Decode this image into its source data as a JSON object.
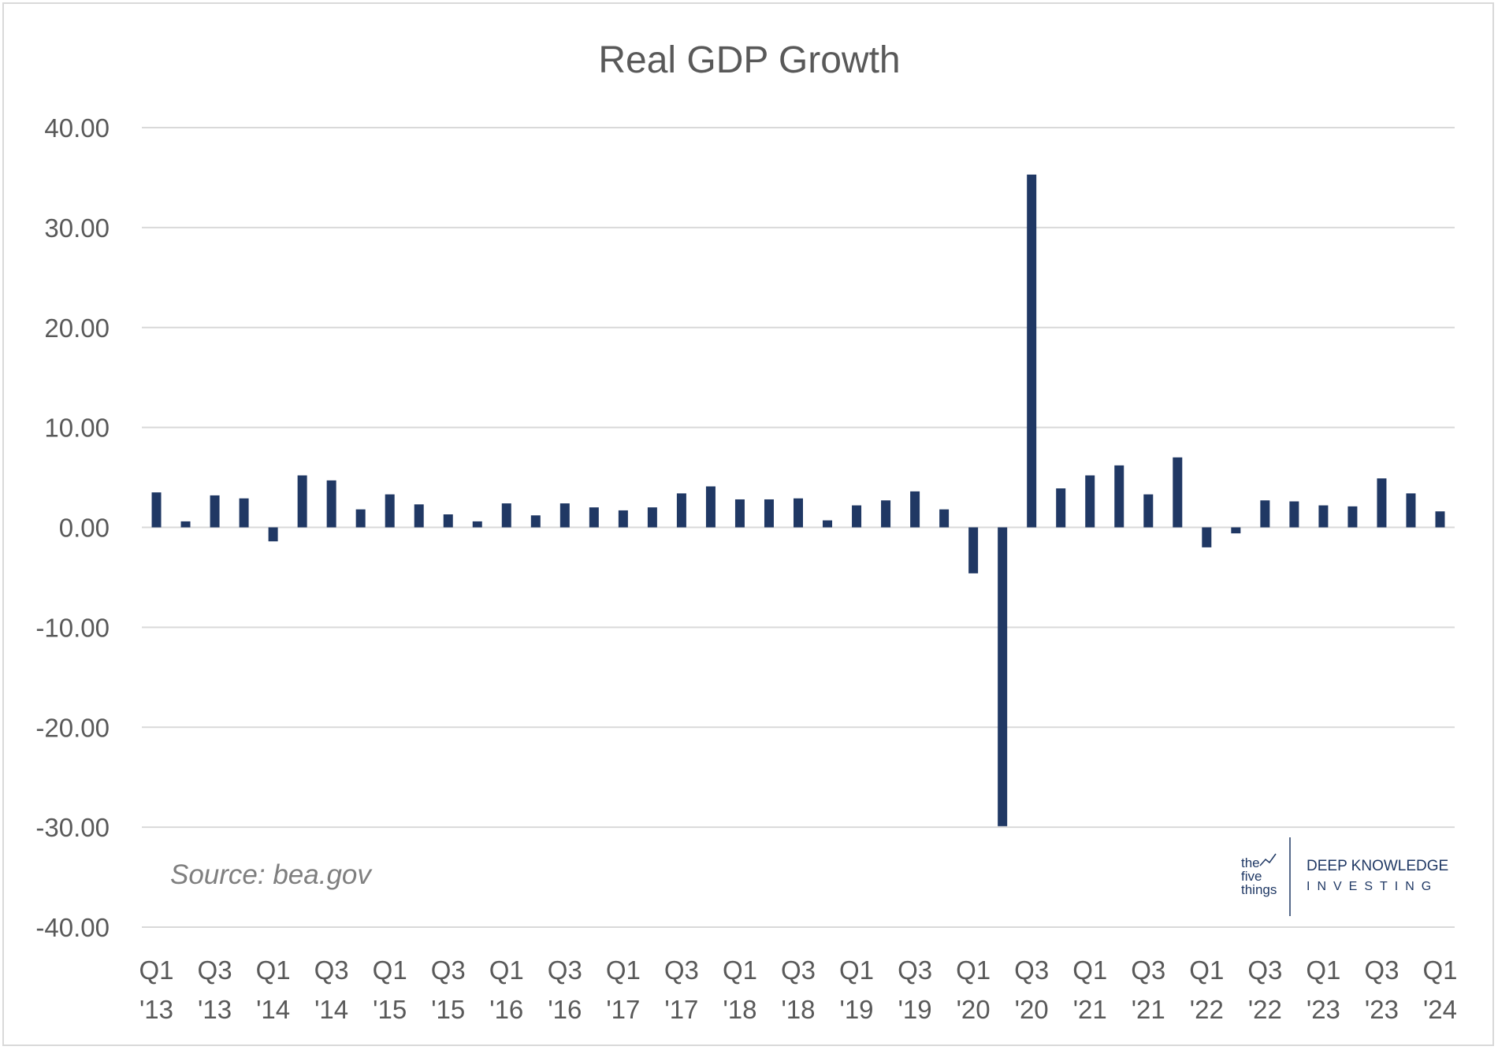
{
  "chart_data": {
    "type": "bar",
    "title": "Real GDP Growth",
    "xlabel": "",
    "ylabel": "",
    "ylim": [
      -40,
      40
    ],
    "yticks": [
      "40.00",
      "30.00",
      "20.00",
      "10.00",
      "0.00",
      "-10.00",
      "-20.00",
      "-30.00",
      "-40.00"
    ],
    "grid": true,
    "legend": "none",
    "bar_color": "#203864",
    "categories": [
      "Q1 '13",
      "Q2 '13",
      "Q3 '13",
      "Q4 '13",
      "Q1 '14",
      "Q2 '14",
      "Q3 '14",
      "Q4 '14",
      "Q1 '15",
      "Q2 '15",
      "Q3 '15",
      "Q4 '15",
      "Q1 '16",
      "Q2 '16",
      "Q3 '16",
      "Q4 '16",
      "Q1 '17",
      "Q2 '17",
      "Q3 '17",
      "Q4 '17",
      "Q1 '18",
      "Q2 '18",
      "Q3 '18",
      "Q4 '18",
      "Q1 '19",
      "Q2 '19",
      "Q3 '19",
      "Q4 '19",
      "Q1 '20",
      "Q2 '20",
      "Q3 '20",
      "Q4 '20",
      "Q1 '21",
      "Q2 '21",
      "Q3 '21",
      "Q4 '21",
      "Q1 '22",
      "Q2 '22",
      "Q3 '22",
      "Q4 '22",
      "Q1 '23",
      "Q2 '23",
      "Q3 '23",
      "Q4 '23",
      "Q1 '24"
    ],
    "values": [
      3.5,
      0.6,
      3.2,
      2.9,
      -1.4,
      5.2,
      4.7,
      1.8,
      3.3,
      2.3,
      1.3,
      0.6,
      2.4,
      1.2,
      2.4,
      2.0,
      1.7,
      2.0,
      3.4,
      4.1,
      2.8,
      2.8,
      2.9,
      0.7,
      2.2,
      2.7,
      3.6,
      1.8,
      -4.6,
      -29.9,
      35.3,
      3.9,
      5.2,
      6.2,
      3.3,
      7.0,
      -2.0,
      -0.6,
      2.7,
      2.6,
      2.2,
      2.1,
      4.9,
      3.4,
      1.6
    ],
    "x_tick_labels": [
      {
        "index": 0,
        "quarter": "Q1",
        "year": "'13"
      },
      {
        "index": 2,
        "quarter": "Q3",
        "year": "'13"
      },
      {
        "index": 4,
        "quarter": "Q1",
        "year": "'14"
      },
      {
        "index": 6,
        "quarter": "Q3",
        "year": "'14"
      },
      {
        "index": 8,
        "quarter": "Q1",
        "year": "'15"
      },
      {
        "index": 10,
        "quarter": "Q3",
        "year": "'15"
      },
      {
        "index": 12,
        "quarter": "Q1",
        "year": "'16"
      },
      {
        "index": 14,
        "quarter": "Q3",
        "year": "'16"
      },
      {
        "index": 16,
        "quarter": "Q1",
        "year": "'17"
      },
      {
        "index": 18,
        "quarter": "Q3",
        "year": "'17"
      },
      {
        "index": 20,
        "quarter": "Q1",
        "year": "'18"
      },
      {
        "index": 22,
        "quarter": "Q3",
        "year": "'18"
      },
      {
        "index": 24,
        "quarter": "Q1",
        "year": "'19"
      },
      {
        "index": 26,
        "quarter": "Q3",
        "year": "'19"
      },
      {
        "index": 28,
        "quarter": "Q1",
        "year": "'20"
      },
      {
        "index": 30,
        "quarter": "Q3",
        "year": "'20"
      },
      {
        "index": 32,
        "quarter": "Q1",
        "year": "'21"
      },
      {
        "index": 34,
        "quarter": "Q3",
        "year": "'21"
      },
      {
        "index": 36,
        "quarter": "Q1",
        "year": "'22"
      },
      {
        "index": 38,
        "quarter": "Q3",
        "year": "'22"
      },
      {
        "index": 40,
        "quarter": "Q1",
        "year": "'23"
      },
      {
        "index": 42,
        "quarter": "Q3",
        "year": "'23"
      },
      {
        "index": 44,
        "quarter": "Q1",
        "year": "'24"
      }
    ],
    "annotation": "Source: bea.gov"
  },
  "logo": {
    "left_line1": "the",
    "left_line2": "five",
    "left_line3": "things",
    "main": "DEEP KNOWLEDGE",
    "sub": "INVESTING"
  }
}
